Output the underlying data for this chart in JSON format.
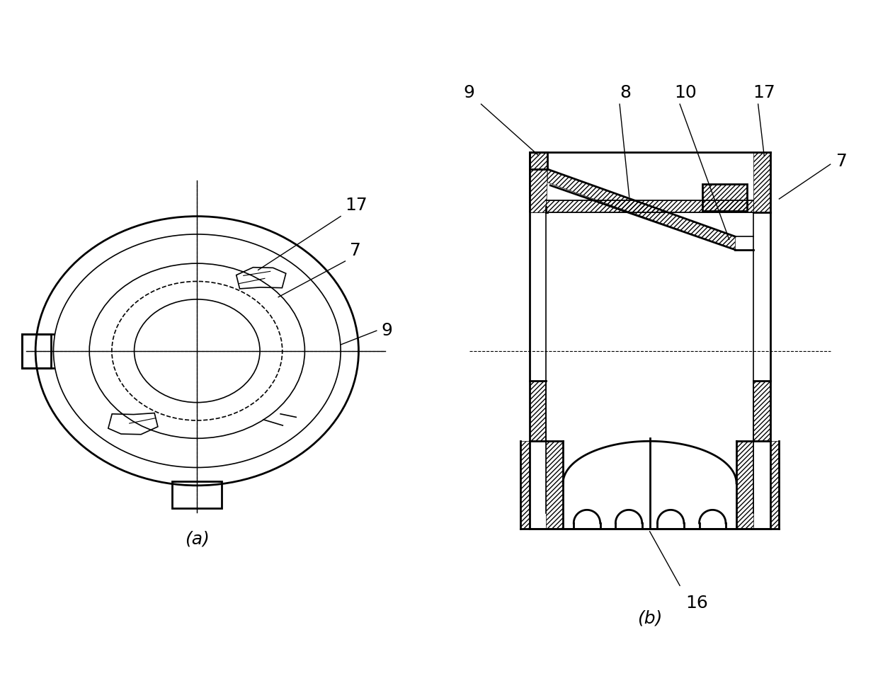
{
  "bg_color": "#ffffff",
  "line_color": "#000000",
  "label_a": "(a)",
  "label_b": "(b)",
  "fontsize": 18,
  "lw_main": 2.0,
  "lw_thin": 1.2
}
